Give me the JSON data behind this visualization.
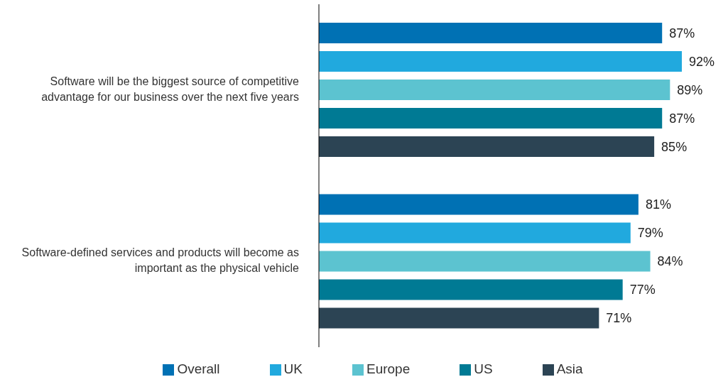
{
  "chart_data": {
    "type": "bar",
    "orientation": "horizontal",
    "categories": [
      "Software will be the biggest source of competitive advantage for our business over the next five years",
      "Software-defined services and products will become as important as the physical vehicle"
    ],
    "series": [
      {
        "name": "Overall",
        "color": "#0071b4",
        "values": [
          87,
          81
        ],
        "value_labels": [
          "87%",
          "81%"
        ]
      },
      {
        "name": "UK",
        "color": "#21a9de",
        "values": [
          92,
          79
        ],
        "value_labels": [
          "92%",
          "79%"
        ]
      },
      {
        "name": "Europe",
        "color": "#5cc3d0",
        "values": [
          89,
          84
        ],
        "value_labels": [
          "89%",
          "84%"
        ]
      },
      {
        "name": "US",
        "color": "#007a94",
        "values": [
          87,
          77
        ],
        "value_labels": [
          "87%",
          "77%"
        ]
      },
      {
        "name": "Asia",
        "color": "#2c4454",
        "values": [
          85,
          71
        ],
        "value_labels": [
          "85%",
          "71%"
        ]
      }
    ],
    "legend": "bottom",
    "grid": false
  }
}
